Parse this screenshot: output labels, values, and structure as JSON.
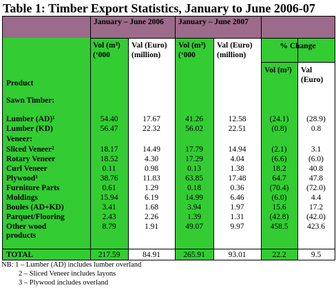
{
  "title": "Table 1: Timber Export Statistics, January to June 2006-07",
  "period_2006": "January – June 2006",
  "period_2007": "January – June 2007",
  "pct_change": "% Change",
  "col_heads": {
    "vol_2006": "Vol (m³) (‘000",
    "val_2006": "Val (Euro) (million)",
    "vol_2007": "Vol (m³) (‘000",
    "val_2007": "Val (Euro) (million)",
    "vol_pct": "Vol (m³)",
    "val_pct": "Val (Euro)"
  },
  "product_label": "Product",
  "sawn_timber_label": "Sawn Timber:",
  "veneer_label": "Veneer:",
  "rows": [
    {
      "name": "Lumber (AD)¹",
      "v06": "54.40",
      "e06": "17.67",
      "v07": "41.26",
      "e07": "12.58",
      "pv": "(24.1)",
      "pe": "(28.9)"
    },
    {
      "name": "Lumber (KD)",
      "v06": "56.47",
      "e06": "22.32",
      "v07": "56.02",
      "e07": "22.51",
      "pv": "(0.8)",
      "pe": "0.8"
    },
    {
      "name": "Sliced Veneer²",
      "v06": "18.17",
      "e06": "14.49",
      "v07": "17.79",
      "e07": "14.94",
      "pv": "(2.1)",
      "pe": "3.1"
    },
    {
      "name": "Rotary Veneer",
      "v06": "18.52",
      "e06": "4.30",
      "v07": "17.29",
      "e07": "4.04",
      "pv": "(6.6)",
      "pe": "(6.0)"
    },
    {
      "name": "Curl Veneer",
      "v06": "0.11",
      "e06": "0.98",
      "v07": "0.13",
      "e07": "1.38",
      "pv": "18.2",
      "pe": "40.8"
    },
    {
      "name": "Plywood³",
      "v06": "38.76",
      "e06": "11.83",
      "v07": "63.85",
      "e07": "17.48",
      "pv": "64.7",
      "pe": "47.8"
    },
    {
      "name": "Furniture Parts",
      "v06": "0.61",
      "e06": "1.29",
      "v07": "0.18",
      "e07": "0.36",
      "pv": "(70.4)",
      "pe": "(72.0)"
    },
    {
      "name": "Moldings",
      "v06": "15.94",
      "e06": "6.19",
      "v07": "14.99",
      "e07": "6.46",
      "pv": "(6.0)",
      "pe": "4.4"
    },
    {
      "name": "Boules (AD+KD)",
      "v06": "3.41",
      "e06": "1.68",
      "v07": "3.94",
      "e07": "1.97",
      "pv": "15.6",
      "pe": "17.2"
    },
    {
      "name": "Parquet/Flooring",
      "v06": "2.43",
      "e06": "2.26",
      "v07": "1.39",
      "e07": "1.31",
      "pv": "(42.8)",
      "pe": "(42.0)"
    },
    {
      "name1": "Other wood",
      "name2": "products",
      "v06": "8.79",
      "e06": "1.91",
      "v07": "49.07",
      "e07": "9.97",
      "pv": "458.5",
      "pe": "423.6"
    }
  ],
  "total": {
    "name": "TOTAL",
    "v06": "217.59",
    "e06": "84.91",
    "v07": "265.91",
    "e07": "93.01",
    "pv": "22.2",
    "pe": "9.5"
  },
  "notes": {
    "n1": "NB: 1 – Lumber (AD) includes lumber overland",
    "n2": "2 – Sliced Veneer includes layons",
    "n3": "3 – Plywood includes overland"
  }
}
